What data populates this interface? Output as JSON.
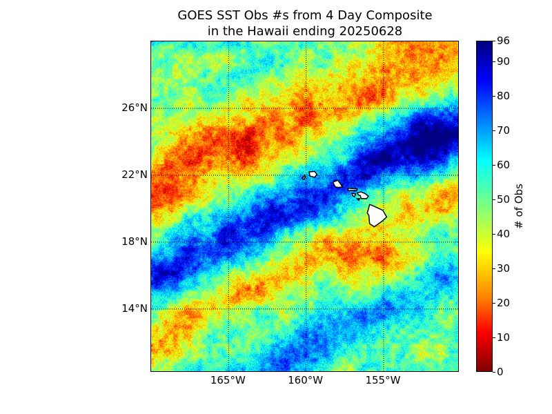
{
  "title": {
    "line1": "GOES SST Obs #s from 4 Day Composite",
    "line2": "in the Hawaii ending 20250628"
  },
  "map": {
    "lon_range": [
      -170,
      -150
    ],
    "lat_range": [
      10,
      30
    ],
    "lat_ticks": [
      {
        "value": 26,
        "label": "26°N"
      },
      {
        "value": 22,
        "label": "22°N"
      },
      {
        "value": 18,
        "label": "18°N"
      },
      {
        "value": 14,
        "label": "14°N"
      }
    ],
    "lon_ticks": [
      {
        "value": -165,
        "label": "165°W"
      },
      {
        "value": -160,
        "label": "160°W"
      },
      {
        "value": -155,
        "label": "155°W"
      }
    ],
    "grid": "dotted",
    "land_color": "#ffffff",
    "colormap": "jet",
    "islands": [
      "Niihau",
      "Kauai",
      "Oahu",
      "Molokai",
      "Lanai",
      "Maui",
      "Kahoolawe",
      "Hawaii"
    ]
  },
  "colorbar": {
    "label": "# of Obs",
    "range": [
      0,
      96
    ],
    "ticks": [
      "0",
      "10",
      "20",
      "30",
      "40",
      "50",
      "60",
      "70",
      "80",
      "90",
      "96"
    ]
  }
}
